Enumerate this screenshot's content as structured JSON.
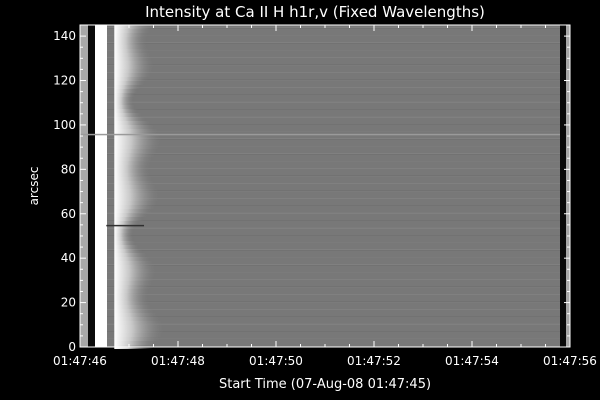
{
  "chart_data": {
    "type": "heatmap",
    "title": "Intensity at Ca II H h1r,v (Fixed Wavelengths)",
    "xlabel": "Start Time (07-Aug-08 01:47:45)",
    "ylabel": "arcsec",
    "colormap": "grayscale",
    "x_tick_labels": [
      "01:47:46",
      "01:47:48",
      "01:47:50",
      "01:47:52",
      "01:47:54",
      "01:47:56"
    ],
    "x_tick_values": [
      1,
      3,
      5,
      7,
      9,
      11
    ],
    "xlim": [
      1,
      11
    ],
    "y_ticks": [
      0,
      20,
      40,
      60,
      80,
      100,
      120,
      140
    ],
    "ylim": [
      0,
      145
    ],
    "features": {
      "bright_onset_time_s": 1.5,
      "saturated_band_end_s": 1.7,
      "decay_end_s": 2.8,
      "background_level": 0.47,
      "dark_line_y": 55,
      "bright_line_y": 96
    }
  },
  "colors": {
    "background": "#000000",
    "axes": "#ffffff",
    "text": "#ffffff"
  }
}
